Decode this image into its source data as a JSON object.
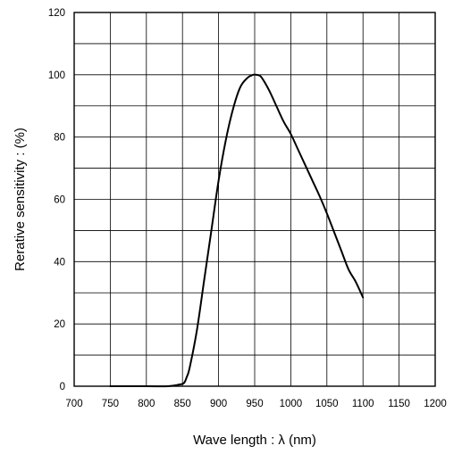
{
  "chart_data": {
    "type": "line",
    "title": "",
    "xlabel": "Wave length : λ (nm)",
    "ylabel": "Rerative sensitivity : (%)",
    "xlim": [
      700,
      1200
    ],
    "ylim": [
      0,
      120
    ],
    "x_ticks": [
      "700",
      "750",
      "800",
      "850",
      "900",
      "950",
      "1000",
      "1050",
      "1100",
      "1150",
      "1200"
    ],
    "y_ticks": [
      "0",
      "20",
      "40",
      "60",
      "80",
      "100",
      "120"
    ],
    "y_grid_step": 10,
    "grid": true,
    "legend": "none",
    "series": [
      {
        "color": "#000000",
        "x": [
          750,
          800,
          830,
          845,
          852,
          856,
          860,
          870,
          880,
          890,
          900,
          910,
          920,
          930,
          940,
          948,
          952,
          956,
          960,
          970,
          980,
          990,
          1000,
          1010,
          1020,
          1030,
          1040,
          1050,
          1060,
          1070,
          1080,
          1090,
          1100
        ],
        "y": [
          0,
          0,
          0,
          0.5,
          1,
          3,
          6,
          18,
          34,
          50,
          66,
          79,
          89,
          96,
          99,
          100,
          100,
          99.8,
          99,
          95,
          90,
          85,
          81,
          76,
          71,
          66,
          61,
          55.5,
          49.5,
          43.5,
          37.5,
          33.5,
          28.5
        ]
      }
    ]
  }
}
